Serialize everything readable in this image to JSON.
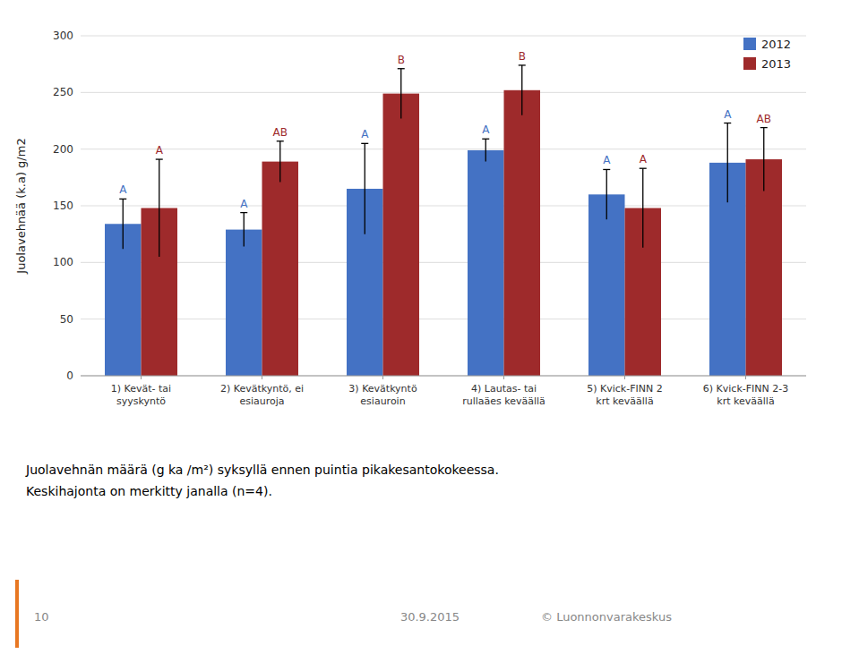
{
  "chart_data": {
    "type": "bar",
    "categories": [
      "1) Kevät- tai\nsyyskyntö",
      "2) Kevätkyntö, ei\nesiauroja",
      "3) Kevätkyntö\nesiauroin",
      "4) Lautas- tai\nrullaäes keväällä",
      "5) Kvick-FINN 2\nkrt keväällä",
      "6) Kvick-FINN 2-3\nkrt keväällä"
    ],
    "series": [
      {
        "name": "2012",
        "color": "#4472C4",
        "values": [
          134,
          129,
          165,
          199,
          160,
          188
        ],
        "errors": [
          22,
          15,
          40,
          10,
          22,
          35
        ],
        "labels": [
          "A",
          "A",
          "A",
          "A",
          "A",
          "A"
        ]
      },
      {
        "name": "2013",
        "color": "#9E2A2B",
        "values": [
          148,
          189,
          249,
          252,
          148,
          191
        ],
        "errors": [
          43,
          18,
          22,
          22,
          35,
          28
        ],
        "labels": [
          "A",
          "AB",
          "B",
          "B",
          "A",
          "AB"
        ]
      }
    ],
    "ylabel": "Juolavehnää (k.a) g/m2",
    "ylim": [
      0,
      300
    ],
    "yticks": [
      0,
      50,
      100,
      150,
      200,
      250,
      300
    ],
    "grid": true,
    "legend": "upper right",
    "footnotes": [
      "Juolavehnän määrä (g ka /m²) syksyllä ennen puintia pikakesantokokeessa.",
      "Keskihajonta on merkitty janalla (n=4)."
    ],
    "footer": [
      "10",
      "30.9.2015",
      "© Luonnonvarakeskus"
    ]
  }
}
